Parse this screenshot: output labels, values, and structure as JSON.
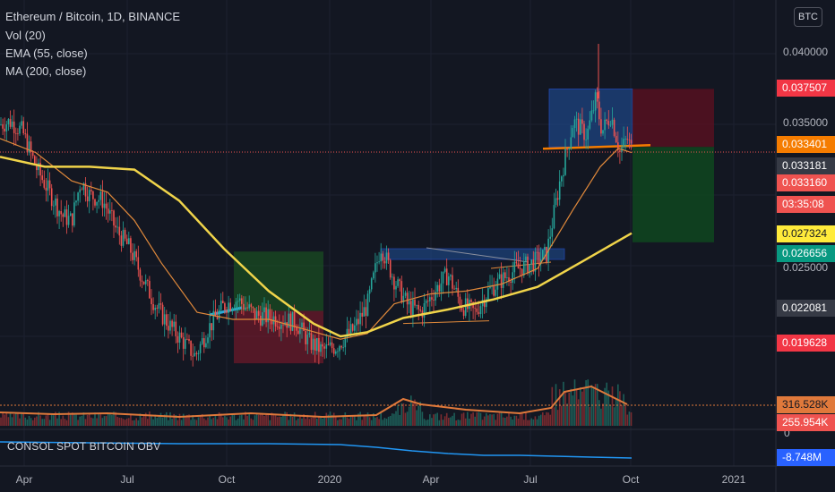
{
  "legend": {
    "symbol": "Ethereum / Bitcoin, 1D, BINANCE",
    "vol": "Vol (20)",
    "ema": "EMA (55, close)",
    "ma": "MA (200, close)"
  },
  "currency_button": "BTC",
  "obv_label": "CONSOL SPOT BITCOIN OBV",
  "price_axis": {
    "ticks": [
      "0.040000",
      "0.035000",
      "0.025000"
    ],
    "zero_label": "0"
  },
  "price_tags": [
    {
      "name": "price-tag-stop",
      "label": "0.037507",
      "bg": "#f23645",
      "fg": "#ffffff"
    },
    {
      "name": "price-tag-entry",
      "label": "0.033401",
      "bg": "#f57c00",
      "fg": "#ffffff"
    },
    {
      "name": "price-tag-last-close",
      "label": "0.033181",
      "bg": "#363a45",
      "fg": "#ffffff"
    },
    {
      "name": "price-tag-current",
      "label": "0.033160",
      "bg": "#ef5350",
      "fg": "#ffffff"
    },
    {
      "name": "price-tag-countdown",
      "label": "03:35:08",
      "bg": "#ef5350",
      "fg": "#ffffff"
    },
    {
      "name": "price-tag-ma200",
      "label": "0.027324",
      "bg": "#ffeb3b",
      "fg": "#131722"
    },
    {
      "name": "price-tag-target",
      "label": "0.026656",
      "bg": "#089981",
      "fg": "#ffffff"
    },
    {
      "name": "price-tag-level",
      "label": "0.022081",
      "bg": "#363a45",
      "fg": "#ffffff"
    },
    {
      "name": "price-tag-low",
      "label": "0.019628",
      "bg": "#f23645",
      "fg": "#ffffff"
    },
    {
      "name": "volume-tag-ma",
      "label": "316.528K",
      "bg": "#e0793b",
      "fg": "#131722"
    },
    {
      "name": "volume-tag-current",
      "label": "255.954K",
      "bg": "#ef5350",
      "fg": "#ffffff"
    },
    {
      "name": "obv-tag",
      "label": "-8.748M",
      "bg": "#2962ff",
      "fg": "#ffffff"
    }
  ],
  "time_axis": [
    "Apr",
    "Jul",
    "Oct",
    "2020",
    "Apr",
    "Jul",
    "Oct",
    "2021"
  ],
  "colors": {
    "background": "#131722",
    "up": "#26a69a",
    "down": "#ef5350",
    "ema": "#e0893b",
    "ma": "#f0d44a",
    "obv": "#2196f3",
    "volume_ma": "#e0793b"
  },
  "chart_data": {
    "type": "candlestick",
    "y_axis": {
      "min": 0.016,
      "max": 0.042
    },
    "price_path": [
      [
        0,
        0.035
      ],
      [
        12,
        0.0352
      ],
      [
        25,
        0.0345
      ],
      [
        40,
        0.032
      ],
      [
        55,
        0.0302
      ],
      [
        70,
        0.0285
      ],
      [
        80,
        0.0282
      ],
      [
        90,
        0.031
      ],
      [
        100,
        0.03
      ],
      [
        115,
        0.0296
      ],
      [
        130,
        0.0275
      ],
      [
        145,
        0.0262
      ],
      [
        160,
        0.024
      ],
      [
        175,
        0.022
      ],
      [
        190,
        0.0207
      ],
      [
        205,
        0.0196
      ],
      [
        218,
        0.0186
      ],
      [
        232,
        0.0205
      ],
      [
        250,
        0.0222
      ],
      [
        265,
        0.0226
      ],
      [
        285,
        0.0215
      ],
      [
        305,
        0.0213
      ],
      [
        330,
        0.021
      ],
      [
        345,
        0.0196
      ],
      [
        360,
        0.019
      ],
      [
        375,
        0.0193
      ],
      [
        395,
        0.0205
      ],
      [
        410,
        0.0222
      ],
      [
        425,
        0.0264
      ],
      [
        440,
        0.024
      ],
      [
        455,
        0.0222
      ],
      [
        470,
        0.0217
      ],
      [
        485,
        0.0232
      ],
      [
        500,
        0.0244
      ],
      [
        515,
        0.0222
      ],
      [
        530,
        0.0217
      ],
      [
        545,
        0.0232
      ],
      [
        560,
        0.024
      ],
      [
        575,
        0.0247
      ],
      [
        595,
        0.0252
      ],
      [
        610,
        0.0258
      ],
      [
        625,
        0.031
      ],
      [
        640,
        0.0352
      ],
      [
        655,
        0.0342
      ],
      [
        665,
        0.0368
      ],
      [
        672,
        0.0345
      ],
      [
        682,
        0.0357
      ],
      [
        692,
        0.033
      ],
      [
        700,
        0.034
      ],
      [
        705,
        0.0332
      ]
    ],
    "ema55_path": [
      [
        0,
        0.034
      ],
      [
        40,
        0.033
      ],
      [
        80,
        0.031
      ],
      [
        120,
        0.0302
      ],
      [
        150,
        0.0282
      ],
      [
        180,
        0.0252
      ],
      [
        220,
        0.0217
      ],
      [
        260,
        0.0212
      ],
      [
        300,
        0.0212
      ],
      [
        340,
        0.0205
      ],
      [
        380,
        0.0198
      ],
      [
        410,
        0.0202
      ],
      [
        440,
        0.0223
      ],
      [
        480,
        0.023
      ],
      [
        520,
        0.0232
      ],
      [
        560,
        0.0237
      ],
      [
        600,
        0.0248
      ],
      [
        640,
        0.029
      ],
      [
        670,
        0.032
      ],
      [
        690,
        0.0333
      ],
      [
        705,
        0.033
      ]
    ],
    "ma200_path": [
      [
        0,
        0.0327
      ],
      [
        50,
        0.032
      ],
      [
        100,
        0.032
      ],
      [
        150,
        0.0318
      ],
      [
        200,
        0.0296
      ],
      [
        250,
        0.0262
      ],
      [
        300,
        0.0232
      ],
      [
        350,
        0.0209
      ],
      [
        380,
        0.02
      ],
      [
        410,
        0.0203
      ],
      [
        450,
        0.0213
      ],
      [
        500,
        0.0219
      ],
      [
        550,
        0.0226
      ],
      [
        600,
        0.0235
      ],
      [
        650,
        0.0253
      ],
      [
        705,
        0.0273
      ]
    ],
    "annotations": {
      "short_position": {
        "entry": 0.033401,
        "stop": 0.037507,
        "target": 0.026656
      },
      "resistance_box": {
        "top": 0.0375,
        "bottom": 0.0334
      },
      "breakout_box": {
        "top": 0.0262,
        "bottom": 0.0255
      },
      "long_position_2019": {
        "entry": 0.0218,
        "stop": 0.0205,
        "target": 0.026
      },
      "lows_line": 0.0211,
      "highs_line": 0.026
    }
  }
}
